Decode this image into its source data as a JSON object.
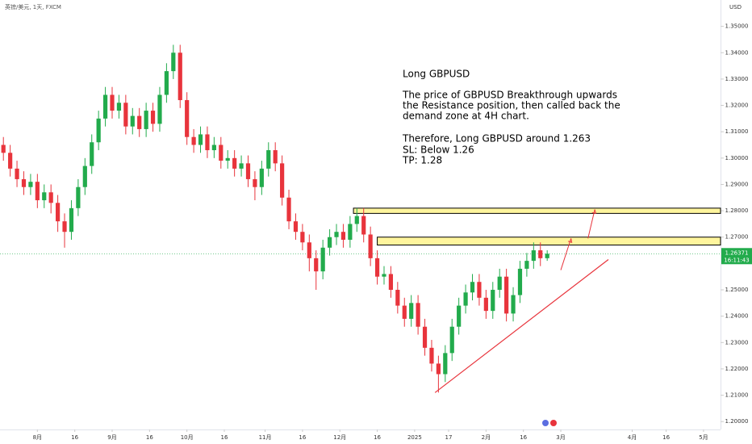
{
  "chart_data": {
    "type": "candlestick",
    "title": "英镑/美元, 1天, FXCM",
    "y_axis_label": "USD",
    "up_color": "#22ab4c",
    "down_color": "#e8343c",
    "x": [
      -10,
      -8,
      -6,
      -4,
      -2,
      0,
      2,
      4,
      6,
      8,
      10,
      12,
      14,
      16,
      18,
      20,
      22,
      24,
      26,
      28,
      30,
      32,
      34,
      36,
      38,
      40,
      42,
      44,
      46,
      48,
      50,
      52,
      54,
      56,
      58,
      60,
      62,
      64,
      66,
      68,
      70,
      72,
      74,
      76,
      78,
      80,
      82,
      84,
      86,
      88,
      90,
      92,
      94,
      96,
      98,
      100,
      102,
      104,
      106,
      108,
      110,
      112,
      114,
      116,
      118,
      120,
      122,
      124,
      126,
      128,
      130,
      132,
      134,
      136,
      138,
      140,
      142,
      144,
      146,
      148,
      150
    ],
    "open": [
      1.305,
      1.302,
      1.296,
      1.292,
      1.289,
      1.291,
      1.284,
      1.287,
      1.283,
      1.276,
      1.272,
      1.281,
      1.289,
      1.297,
      1.306,
      1.315,
      1.324,
      1.318,
      1.321,
      1.312,
      1.316,
      1.311,
      1.318,
      1.313,
      1.324,
      1.333,
      1.34,
      1.322,
      1.308,
      1.305,
      1.309,
      1.303,
      1.305,
      1.299,
      1.3,
      1.296,
      1.298,
      1.292,
      1.289,
      1.296,
      1.303,
      1.298,
      1.285,
      1.276,
      1.272,
      1.268,
      1.262,
      1.257,
      1.266,
      1.27,
      1.272,
      1.269,
      1.275,
      1.278,
      1.271,
      1.262,
      1.255,
      1.256,
      1.25,
      1.244,
      1.239,
      1.245,
      1.236,
      1.228,
      1.222,
      1.218,
      1.226,
      1.236,
      1.244,
      1.249,
      1.253,
      1.247,
      1.242,
      1.25,
      1.255,
      1.241,
      1.248,
      1.258,
      1.261,
      1.265,
      1.262
    ],
    "high": [
      1.308,
      1.305,
      1.299,
      1.295,
      1.294,
      1.294,
      1.29,
      1.29,
      1.286,
      1.279,
      1.284,
      1.292,
      1.3,
      1.309,
      1.318,
      1.327,
      1.327,
      1.324,
      1.324,
      1.319,
      1.319,
      1.321,
      1.321,
      1.327,
      1.336,
      1.343,
      1.343,
      1.325,
      1.311,
      1.312,
      1.312,
      1.308,
      1.308,
      1.303,
      1.303,
      1.301,
      1.301,
      1.295,
      1.299,
      1.306,
      1.306,
      1.301,
      1.288,
      1.279,
      1.275,
      1.271,
      1.265,
      1.269,
      1.273,
      1.275,
      1.275,
      1.278,
      1.281,
      1.281,
      1.274,
      1.265,
      1.259,
      1.259,
      1.253,
      1.247,
      1.248,
      1.248,
      1.239,
      1.231,
      1.225,
      1.229,
      1.239,
      1.247,
      1.252,
      1.256,
      1.256,
      1.25,
      1.253,
      1.258,
      1.258,
      1.251,
      1.261,
      1.264,
      1.268,
      1.268,
      1.265
    ],
    "low": [
      1.299,
      1.293,
      1.289,
      1.286,
      1.286,
      1.281,
      1.281,
      1.279,
      1.272,
      1.266,
      1.269,
      1.278,
      1.286,
      1.294,
      1.303,
      1.312,
      1.315,
      1.315,
      1.309,
      1.309,
      1.308,
      1.308,
      1.31,
      1.31,
      1.321,
      1.33,
      1.319,
      1.305,
      1.302,
      1.302,
      1.3,
      1.3,
      1.296,
      1.296,
      1.293,
      1.293,
      1.289,
      1.284,
      1.286,
      1.293,
      1.295,
      1.282,
      1.273,
      1.269,
      1.265,
      1.257,
      1.25,
      1.254,
      1.263,
      1.267,
      1.266,
      1.266,
      1.272,
      1.268,
      1.259,
      1.252,
      1.252,
      1.247,
      1.241,
      1.236,
      1.236,
      1.233,
      1.225,
      1.219,
      1.211,
      1.215,
      1.223,
      1.233,
      1.241,
      1.246,
      1.244,
      1.239,
      1.239,
      1.247,
      1.238,
      1.238,
      1.245,
      1.255,
      1.258,
      1.259,
      1.261
    ],
    "close": [
      1.302,
      1.296,
      1.292,
      1.289,
      1.291,
      1.284,
      1.287,
      1.283,
      1.276,
      1.272,
      1.281,
      1.289,
      1.297,
      1.306,
      1.315,
      1.324,
      1.318,
      1.321,
      1.312,
      1.316,
      1.311,
      1.318,
      1.313,
      1.324,
      1.333,
      1.34,
      1.322,
      1.308,
      1.305,
      1.309,
      1.303,
      1.305,
      1.299,
      1.3,
      1.296,
      1.298,
      1.292,
      1.289,
      1.296,
      1.303,
      1.298,
      1.285,
      1.276,
      1.272,
      1.268,
      1.262,
      1.257,
      1.266,
      1.27,
      1.272,
      1.269,
      1.275,
      1.278,
      1.271,
      1.262,
      1.255,
      1.256,
      1.25,
      1.244,
      1.239,
      1.245,
      1.236,
      1.228,
      1.222,
      1.218,
      1.226,
      1.236,
      1.244,
      1.249,
      1.253,
      1.247,
      1.242,
      1.25,
      1.255,
      1.241,
      1.248,
      1.258,
      1.261,
      1.265,
      1.262,
      1.26371
    ],
    "xlim": [
      -11,
      201
    ],
    "ylim": [
      1.197,
      1.36
    ],
    "xticks": [
      {
        "value": 0,
        "label": "8月"
      },
      {
        "value": 11,
        "label": "16"
      },
      {
        "value": 22,
        "label": "9月"
      },
      {
        "value": 33,
        "label": "16"
      },
      {
        "value": 44,
        "label": "10月"
      },
      {
        "value": 55,
        "label": "16"
      },
      {
        "value": 67,
        "label": "11月"
      },
      {
        "value": 78,
        "label": "16"
      },
      {
        "value": 89,
        "label": "12月"
      },
      {
        "value": 100,
        "label": "16"
      },
      {
        "value": 111,
        "label": "2025"
      },
      {
        "value": 121,
        "label": "17"
      },
      {
        "value": 132,
        "label": "2月"
      },
      {
        "value": 143,
        "label": "16"
      },
      {
        "value": 154,
        "label": "3月"
      },
      {
        "value": 175,
        "label": "4月"
      },
      {
        "value": 185,
        "label": "16"
      },
      {
        "value": 196,
        "label": "5月"
      }
    ],
    "yticks": [
      {
        "value": 1.35,
        "label": "1.35000"
      },
      {
        "value": 1.34,
        "label": "1.34000"
      },
      {
        "value": 1.33,
        "label": "1.33000"
      },
      {
        "value": 1.32,
        "label": "1.32000"
      },
      {
        "value": 1.31,
        "label": "1.31000"
      },
      {
        "value": 1.3,
        "label": "1.30000"
      },
      {
        "value": 1.29,
        "label": "1.29000"
      },
      {
        "value": 1.28,
        "label": "1.28000"
      },
      {
        "value": 1.27,
        "label": "1.27000"
      },
      {
        "value": 1.25,
        "label": "1.25000"
      },
      {
        "value": 1.24,
        "label": "1.24000"
      },
      {
        "value": 1.23,
        "label": "1.23000"
      },
      {
        "value": 1.22,
        "label": "1.22000"
      },
      {
        "value": 1.21,
        "label": "1.21000"
      },
      {
        "value": 1.2,
        "label": "1.20000"
      }
    ],
    "last_price": {
      "value": 1.26371,
      "label": "1.26371",
      "countdown": "16:11:43",
      "color": "#22ab4c"
    },
    "zones": [
      {
        "x_start": 93,
        "low": 1.279,
        "high": 1.281,
        "color": "#fff59d"
      },
      {
        "x_start": 100,
        "low": 1.267,
        "high": 1.27,
        "color": "#fff59d"
      }
    ],
    "trendline": {
      "x": [
        117,
        168
      ],
      "y": [
        1.211,
        1.2615
      ],
      "color": "#e8343c"
    },
    "arrows": [
      {
        "x": [
          154,
          157
        ],
        "y": [
          1.2575,
          1.2695
        ]
      },
      {
        "x": [
          162,
          164
        ],
        "y": [
          1.2695,
          1.2805
        ]
      }
    ],
    "annotation": [
      "Long GBPUSD",
      "The price of GBPUSD Breakthrough upwards",
      "the Resistance position, then called back the",
      "demand zone at 4H chart.",
      "Therefore, Long GBPUSD around 1.263",
      "SL: Below 1.26",
      "TP: 1.28"
    ]
  }
}
